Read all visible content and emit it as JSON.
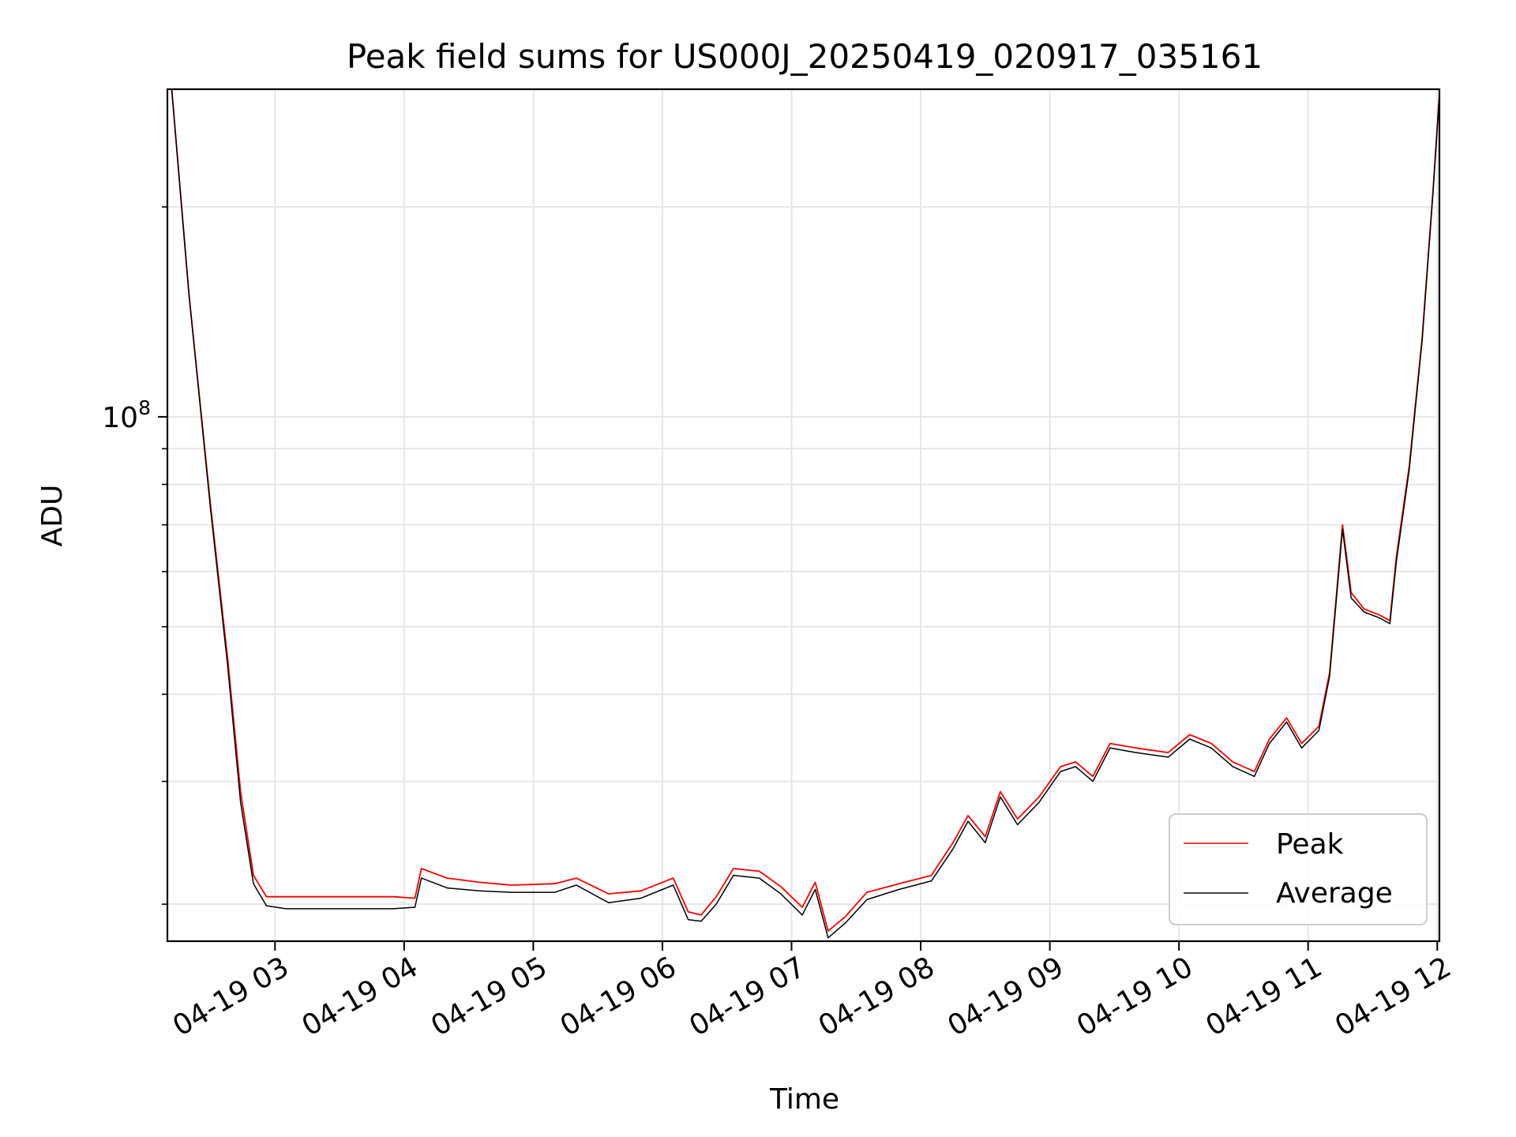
{
  "chart_data": {
    "type": "line",
    "title": "Peak field sums for US000J_20250419_020917_035161",
    "xlabel": "Time",
    "ylabel": "ADU",
    "y_scale": "log",
    "ylim": [
      17700000,
      295000000
    ],
    "xlim": [
      "2025-04-19 02:10",
      "2025-04-19 12:01"
    ],
    "grid": true,
    "legend_position": "lower-right",
    "x_ticks": [
      {
        "t": "2025-04-19 03:00",
        "label": "04-19 03"
      },
      {
        "t": "2025-04-19 04:00",
        "label": "04-19 04"
      },
      {
        "t": "2025-04-19 05:00",
        "label": "04-19 05"
      },
      {
        "t": "2025-04-19 06:00",
        "label": "04-19 06"
      },
      {
        "t": "2025-04-19 07:00",
        "label": "04-19 07"
      },
      {
        "t": "2025-04-19 08:00",
        "label": "04-19 08"
      },
      {
        "t": "2025-04-19 09:00",
        "label": "04-19 09"
      },
      {
        "t": "2025-04-19 10:00",
        "label": "04-19 10"
      },
      {
        "t": "2025-04-19 11:00",
        "label": "04-19 11"
      },
      {
        "t": "2025-04-19 12:00",
        "label": "04-19 12"
      }
    ],
    "y_major_ticks": [
      {
        "value": 100000000,
        "base": "10",
        "exp": "8"
      }
    ],
    "y_minor_ticks": [
      20000000,
      30000000,
      40000000,
      50000000,
      60000000,
      70000000,
      80000000,
      90000000,
      200000000
    ],
    "series": [
      {
        "name": "Peak",
        "color": "#ff0000",
        "points": [
          [
            "2025-04-19 02:12",
            295000000
          ],
          [
            "2025-04-19 02:20",
            150000000
          ],
          [
            "2025-04-19 02:30",
            75000000
          ],
          [
            "2025-04-19 02:38",
            45000000
          ],
          [
            "2025-04-19 02:44",
            29000000
          ],
          [
            "2025-04-19 02:50",
            22000000
          ],
          [
            "2025-04-19 02:56",
            20500000
          ],
          [
            "2025-04-19 03:05",
            20500000
          ],
          [
            "2025-04-19 03:30",
            20500000
          ],
          [
            "2025-04-19 03:55",
            20500000
          ],
          [
            "2025-04-19 04:05",
            20400000
          ],
          [
            "2025-04-19 04:08",
            22500000
          ],
          [
            "2025-04-19 04:20",
            21800000
          ],
          [
            "2025-04-19 04:35",
            21500000
          ],
          [
            "2025-04-19 04:50",
            21300000
          ],
          [
            "2025-04-19 05:10",
            21400000
          ],
          [
            "2025-04-19 05:20",
            21800000
          ],
          [
            "2025-04-19 05:35",
            20700000
          ],
          [
            "2025-04-19 05:50",
            20900000
          ],
          [
            "2025-04-19 06:05",
            21800000
          ],
          [
            "2025-04-19 06:12",
            19500000
          ],
          [
            "2025-04-19 06:18",
            19300000
          ],
          [
            "2025-04-19 06:25",
            20500000
          ],
          [
            "2025-04-19 06:33",
            22500000
          ],
          [
            "2025-04-19 06:45",
            22300000
          ],
          [
            "2025-04-19 06:55",
            21200000
          ],
          [
            "2025-04-19 07:05",
            19800000
          ],
          [
            "2025-04-19 07:11",
            21500000
          ],
          [
            "2025-04-19 07:17",
            18300000
          ],
          [
            "2025-04-19 07:25",
            19200000
          ],
          [
            "2025-04-19 07:35",
            20800000
          ],
          [
            "2025-04-19 07:50",
            21400000
          ],
          [
            "2025-04-19 08:05",
            22000000
          ],
          [
            "2025-04-19 08:15",
            24500000
          ],
          [
            "2025-04-19 08:22",
            26800000
          ],
          [
            "2025-04-19 08:30",
            25000000
          ],
          [
            "2025-04-19 08:37",
            29000000
          ],
          [
            "2025-04-19 08:45",
            26500000
          ],
          [
            "2025-04-19 08:55",
            28500000
          ],
          [
            "2025-04-19 09:05",
            31500000
          ],
          [
            "2025-04-19 09:12",
            32000000
          ],
          [
            "2025-04-19 09:20",
            30500000
          ],
          [
            "2025-04-19 09:28",
            34000000
          ],
          [
            "2025-04-19 09:40",
            33500000
          ],
          [
            "2025-04-19 09:55",
            33000000
          ],
          [
            "2025-04-19 10:05",
            35000000
          ],
          [
            "2025-04-19 10:15",
            34000000
          ],
          [
            "2025-04-19 10:25",
            32000000
          ],
          [
            "2025-04-19 10:35",
            31000000
          ],
          [
            "2025-04-19 10:42",
            34500000
          ],
          [
            "2025-04-19 10:50",
            37000000
          ],
          [
            "2025-04-19 10:57",
            34000000
          ],
          [
            "2025-04-19 11:05",
            36000000
          ],
          [
            "2025-04-19 11:10",
            43000000
          ],
          [
            "2025-04-19 11:16",
            70000000
          ],
          [
            "2025-04-19 11:20",
            56000000
          ],
          [
            "2025-04-19 11:26",
            53000000
          ],
          [
            "2025-04-19 11:33",
            52000000
          ],
          [
            "2025-04-19 11:38",
            51000000
          ],
          [
            "2025-04-19 11:41",
            63000000
          ],
          [
            "2025-04-19 11:47",
            85000000
          ],
          [
            "2025-04-19 11:53",
            130000000
          ],
          [
            "2025-04-19 11:58",
            210000000
          ],
          [
            "2025-04-19 12:01",
            290000000
          ]
        ]
      },
      {
        "name": "Average",
        "color": "#000000",
        "points": [
          [
            "2025-04-19 02:12",
            295000000
          ],
          [
            "2025-04-19 02:20",
            150000000
          ],
          [
            "2025-04-19 02:30",
            74000000
          ],
          [
            "2025-04-19 02:38",
            44000000
          ],
          [
            "2025-04-19 02:44",
            28000000
          ],
          [
            "2025-04-19 02:50",
            21400000
          ],
          [
            "2025-04-19 02:56",
            19900000
          ],
          [
            "2025-04-19 03:05",
            19700000
          ],
          [
            "2025-04-19 03:30",
            19700000
          ],
          [
            "2025-04-19 03:55",
            19700000
          ],
          [
            "2025-04-19 04:05",
            19800000
          ],
          [
            "2025-04-19 04:08",
            21800000
          ],
          [
            "2025-04-19 04:20",
            21100000
          ],
          [
            "2025-04-19 04:35",
            20900000
          ],
          [
            "2025-04-19 04:50",
            20800000
          ],
          [
            "2025-04-19 05:10",
            20800000
          ],
          [
            "2025-04-19 05:20",
            21300000
          ],
          [
            "2025-04-19 05:35",
            20100000
          ],
          [
            "2025-04-19 05:50",
            20400000
          ],
          [
            "2025-04-19 06:05",
            21300000
          ],
          [
            "2025-04-19 06:12",
            19000000
          ],
          [
            "2025-04-19 06:18",
            18900000
          ],
          [
            "2025-04-19 06:25",
            20000000
          ],
          [
            "2025-04-19 06:33",
            22000000
          ],
          [
            "2025-04-19 06:45",
            21800000
          ],
          [
            "2025-04-19 06:55",
            20700000
          ],
          [
            "2025-04-19 07:05",
            19300000
          ],
          [
            "2025-04-19 07:11",
            21000000
          ],
          [
            "2025-04-19 07:17",
            17900000
          ],
          [
            "2025-04-19 07:25",
            18800000
          ],
          [
            "2025-04-19 07:35",
            20300000
          ],
          [
            "2025-04-19 07:50",
            21000000
          ],
          [
            "2025-04-19 08:05",
            21600000
          ],
          [
            "2025-04-19 08:15",
            24000000
          ],
          [
            "2025-04-19 08:22",
            26300000
          ],
          [
            "2025-04-19 08:30",
            24500000
          ],
          [
            "2025-04-19 08:37",
            28500000
          ],
          [
            "2025-04-19 08:45",
            26000000
          ],
          [
            "2025-04-19 08:55",
            28000000
          ],
          [
            "2025-04-19 09:05",
            31000000
          ],
          [
            "2025-04-19 09:12",
            31500000
          ],
          [
            "2025-04-19 09:20",
            30000000
          ],
          [
            "2025-04-19 09:28",
            33500000
          ],
          [
            "2025-04-19 09:40",
            33000000
          ],
          [
            "2025-04-19 09:55",
            32500000
          ],
          [
            "2025-04-19 10:05",
            34500000
          ],
          [
            "2025-04-19 10:15",
            33500000
          ],
          [
            "2025-04-19 10:25",
            31500000
          ],
          [
            "2025-04-19 10:35",
            30500000
          ],
          [
            "2025-04-19 10:42",
            34000000
          ],
          [
            "2025-04-19 10:50",
            36500000
          ],
          [
            "2025-04-19 10:57",
            33500000
          ],
          [
            "2025-04-19 11:05",
            35500000
          ],
          [
            "2025-04-19 11:10",
            42500000
          ],
          [
            "2025-04-19 11:16",
            69000000
          ],
          [
            "2025-04-19 11:20",
            55000000
          ],
          [
            "2025-04-19 11:26",
            52500000
          ],
          [
            "2025-04-19 11:33",
            51500000
          ],
          [
            "2025-04-19 11:38",
            50500000
          ],
          [
            "2025-04-19 11:41",
            62000000
          ],
          [
            "2025-04-19 11:47",
            84000000
          ],
          [
            "2025-04-19 11:53",
            129000000
          ],
          [
            "2025-04-19 11:58",
            209000000
          ],
          [
            "2025-04-19 12:01",
            290000000
          ]
        ]
      }
    ]
  }
}
